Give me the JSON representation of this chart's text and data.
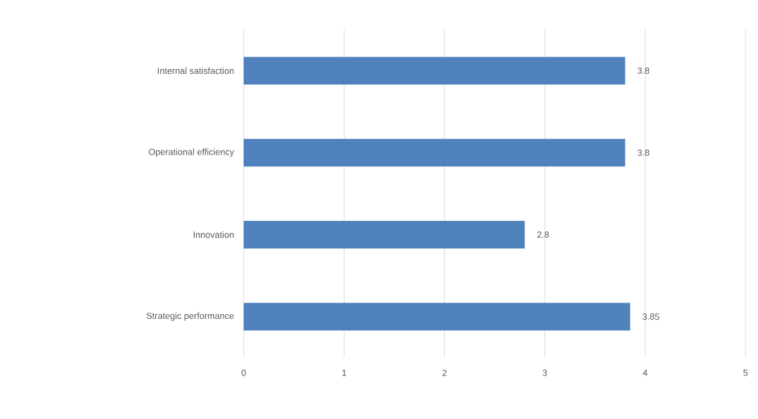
{
  "chart_data": {
    "type": "bar",
    "orientation": "horizontal",
    "categories": [
      "Internal satisfaction",
      "Operational efficiency",
      "Innovation",
      "Strategic performance"
    ],
    "values": [
      3.8,
      3.8,
      2.8,
      3.85
    ],
    "color": "#4f81bd",
    "xlim": [
      0,
      5
    ],
    "xticks": [
      0,
      1,
      2,
      3,
      4,
      5
    ],
    "grid": "x",
    "data_labels": true
  }
}
